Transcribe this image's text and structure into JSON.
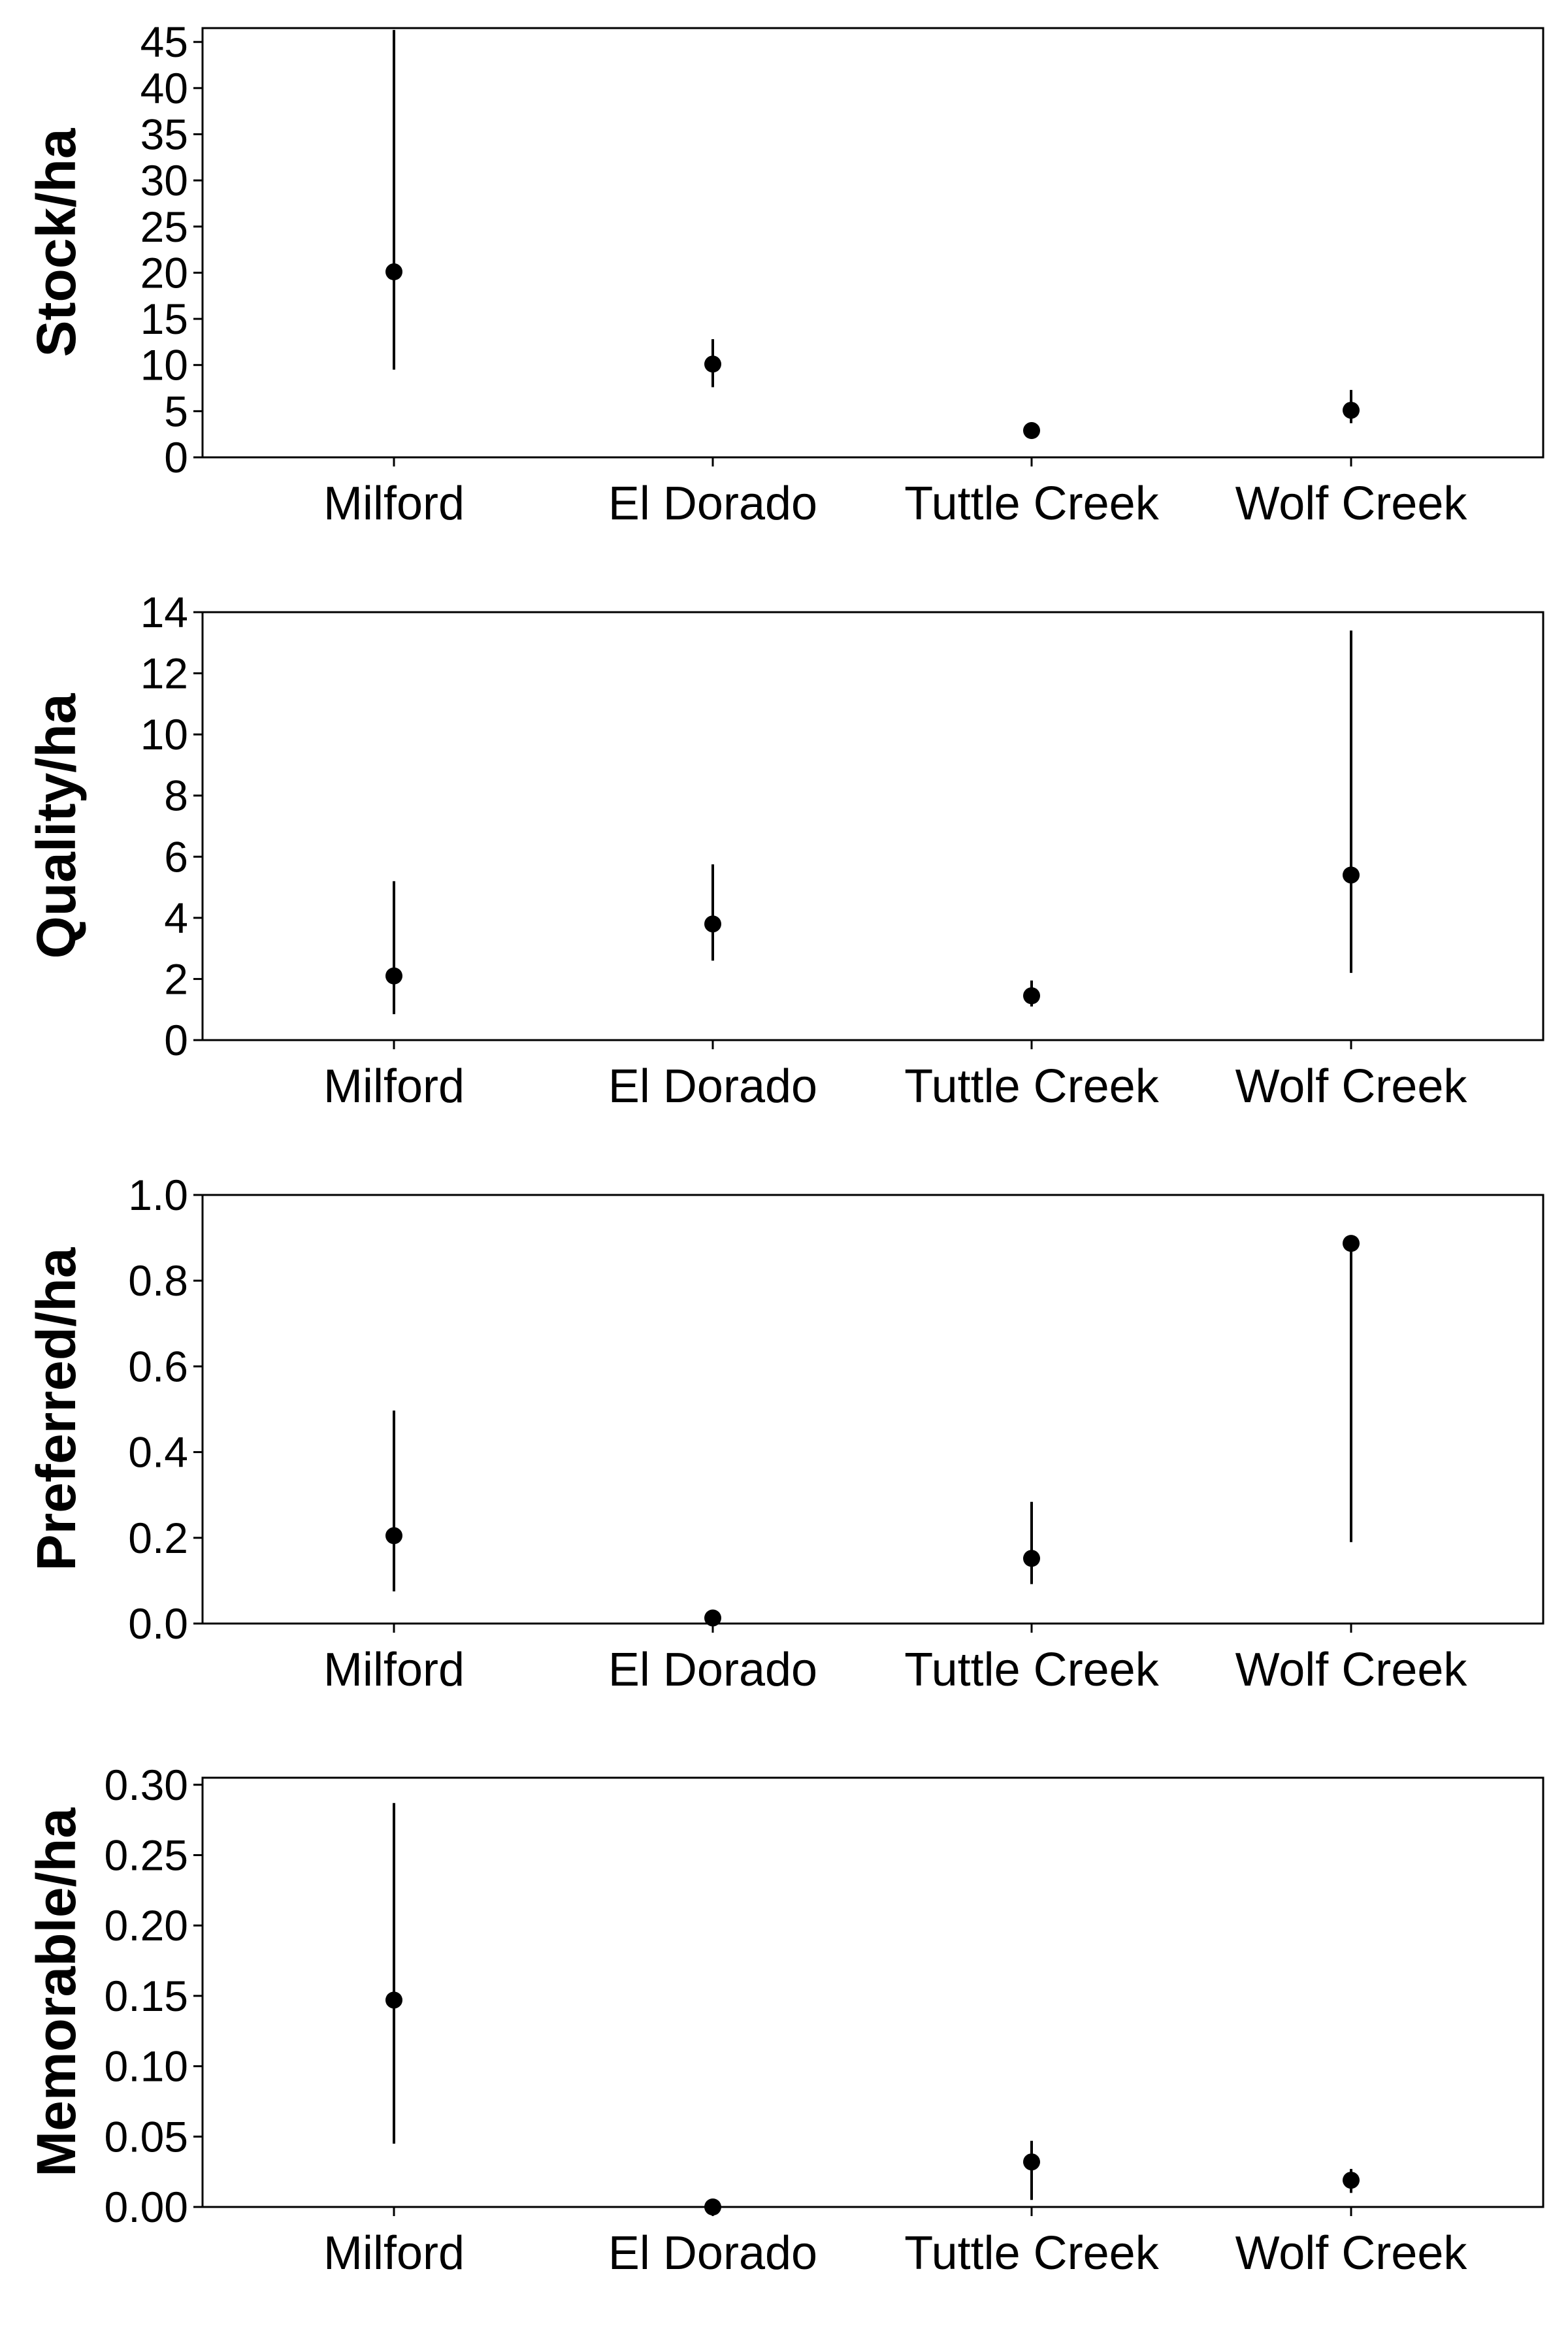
{
  "colors": {
    "ink": "#000000",
    "background": "#ffffff"
  },
  "chart_data": [
    {
      "type": "scatter",
      "ylabel": "Stock/ha",
      "categories": [
        "Milford",
        "El Dorado",
        "Tuttle Creek",
        "Wolf Creek"
      ],
      "ylim": [
        0,
        46.5
      ],
      "yticks": [
        0,
        5,
        10,
        15,
        20,
        25,
        30,
        35,
        40,
        45
      ],
      "ytick_labels": [
        "0",
        "5",
        "10",
        "15",
        "20",
        "25",
        "30",
        "35",
        "40",
        "45"
      ],
      "values": [
        20.1,
        10.1,
        2.9,
        5.1
      ],
      "lower": [
        9.5,
        7.6,
        2.3,
        3.7
      ],
      "upper": [
        46.3,
        12.8,
        3.5,
        7.3
      ],
      "grid": false
    },
    {
      "type": "scatter",
      "ylabel": "Quality/ha",
      "categories": [
        "Milford",
        "El Dorado",
        "Tuttle Creek",
        "Wolf Creek"
      ],
      "ylim": [
        0,
        14
      ],
      "yticks": [
        0,
        2,
        4,
        6,
        8,
        10,
        12,
        14
      ],
      "ytick_labels": [
        "0",
        "2",
        "4",
        "6",
        "8",
        "10",
        "12",
        "14"
      ],
      "values": [
        2.1,
        3.8,
        1.45,
        5.4
      ],
      "lower": [
        0.85,
        2.6,
        1.1,
        2.2
      ],
      "upper": [
        5.2,
        5.75,
        1.95,
        13.4
      ],
      "grid": false
    },
    {
      "type": "scatter",
      "ylabel": "Preferred/ha",
      "categories": [
        "Milford",
        "El Dorado",
        "Tuttle Creek",
        "Wolf Creek"
      ],
      "ylim": [
        0,
        1.0
      ],
      "yticks": [
        0,
        0.2,
        0.4,
        0.6,
        0.8,
        1.0
      ],
      "ytick_labels": [
        "0.0",
        "0.2",
        "0.4",
        "0.6",
        "0.8",
        "1.0"
      ],
      "values": [
        0.205,
        0.013,
        0.152,
        0.887
      ],
      "lower": [
        0.075,
        0.003,
        0.092,
        0.19
      ],
      "upper": [
        0.497,
        0.018,
        0.284,
        0.9
      ],
      "grid": false
    },
    {
      "type": "scatter",
      "ylabel": "Memorable/ha",
      "categories": [
        "Milford",
        "El Dorado",
        "Tuttle Creek",
        "Wolf Creek"
      ],
      "ylim": [
        0,
        0.305
      ],
      "yticks": [
        0,
        0.05,
        0.1,
        0.15,
        0.2,
        0.25,
        0.3
      ],
      "ytick_labels": [
        "0.00",
        "0.05",
        "0.10",
        "0.15",
        "0.20",
        "0.25",
        "0.30"
      ],
      "values": [
        0.147,
        0.0,
        0.032,
        0.019
      ],
      "lower": [
        0.045,
        0.0,
        0.005,
        0.01
      ],
      "upper": [
        0.287,
        0.0,
        0.047,
        0.027
      ],
      "grid": false
    }
  ]
}
